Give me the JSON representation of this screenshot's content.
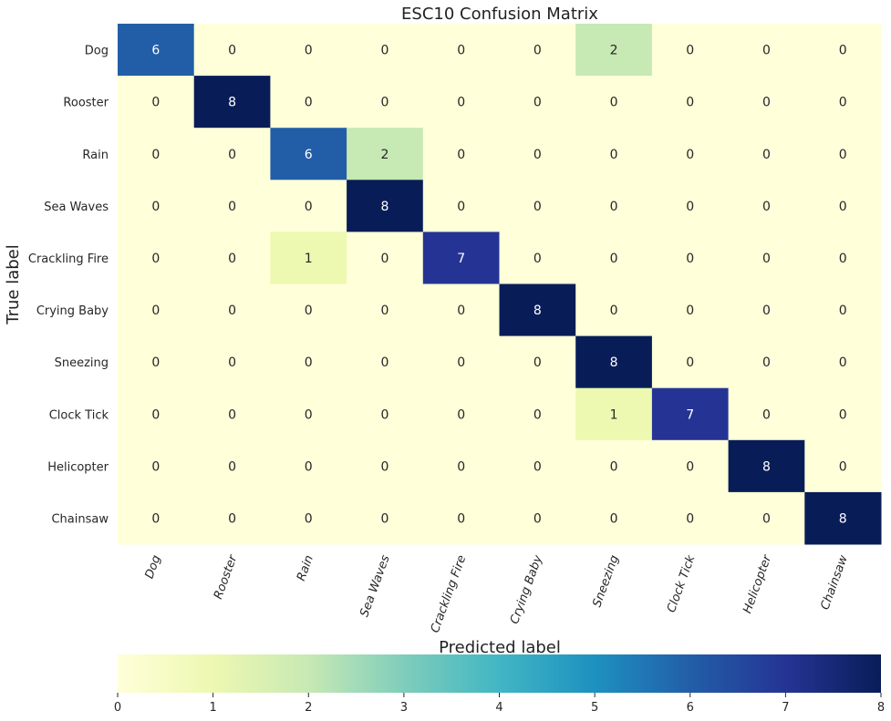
{
  "chart_data": {
    "type": "heatmap",
    "title": "ESC10 Confusion Matrix",
    "xlabel": "Predicted label",
    "ylabel": "True label",
    "row_labels": [
      "Dog",
      "Rooster",
      "Rain",
      "Sea Waves",
      "Crackling Fire",
      "Crying Baby",
      "Sneezing",
      "Clock Tick",
      "Helicopter",
      "Chainsaw"
    ],
    "col_labels": [
      "Dog",
      "Rooster",
      "Rain",
      "Sea Waves",
      "Crackling Fire",
      "Crying Baby",
      "Sneezing",
      "Clock Tick",
      "Helicopter",
      "Chainsaw"
    ],
    "values": [
      [
        6,
        0,
        0,
        0,
        0,
        0,
        2,
        0,
        0,
        0
      ],
      [
        0,
        8,
        0,
        0,
        0,
        0,
        0,
        0,
        0,
        0
      ],
      [
        0,
        0,
        6,
        2,
        0,
        0,
        0,
        0,
        0,
        0
      ],
      [
        0,
        0,
        0,
        8,
        0,
        0,
        0,
        0,
        0,
        0
      ],
      [
        0,
        0,
        1,
        0,
        7,
        0,
        0,
        0,
        0,
        0
      ],
      [
        0,
        0,
        0,
        0,
        0,
        8,
        0,
        0,
        0,
        0
      ],
      [
        0,
        0,
        0,
        0,
        0,
        0,
        8,
        0,
        0,
        0
      ],
      [
        0,
        0,
        0,
        0,
        0,
        0,
        1,
        7,
        0,
        0
      ],
      [
        0,
        0,
        0,
        0,
        0,
        0,
        0,
        0,
        8,
        0
      ],
      [
        0,
        0,
        0,
        0,
        0,
        0,
        0,
        0,
        0,
        8
      ]
    ],
    "colorbar": {
      "range": [
        0,
        8
      ],
      "ticks": [
        "0",
        "1",
        "2",
        "3",
        "4",
        "5",
        "6",
        "7",
        "8"
      ],
      "colormap": "YlGnBu",
      "colors": [
        "#ffffd9",
        "#edf8b1",
        "#c7e9b4",
        "#7fcdbb",
        "#41b6c4",
        "#1d91c0",
        "#225ea8",
        "#253494",
        "#081d58"
      ]
    }
  }
}
